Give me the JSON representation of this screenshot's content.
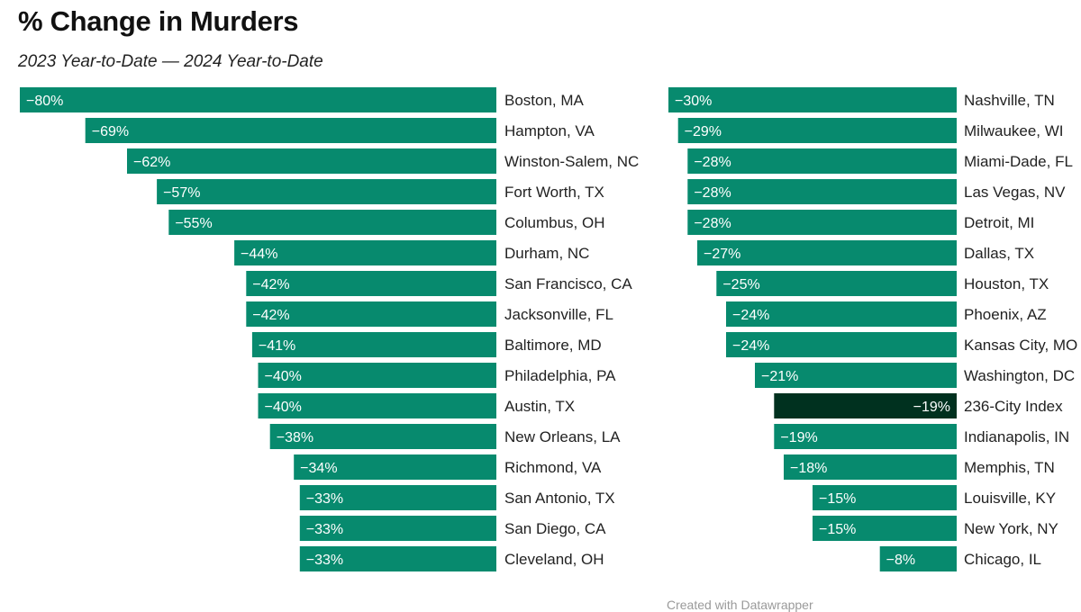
{
  "title": "% Change in Murders",
  "subtitle": "2023 Year-to-Date — 2024 Year-to-Date",
  "credit": "Created with Datawrapper",
  "colors": {
    "bar": "#078a6e",
    "highlight": "#00311f",
    "label_text": "#ffffff"
  },
  "chart_data": [
    {
      "type": "bar",
      "orientation": "horizontal",
      "panel": "left",
      "categories": [
        "Boston, MA",
        "Hampton, VA",
        "Winston-Salem, NC",
        "Fort Worth, TX",
        "Columbus, OH",
        "Durham, NC",
        "San Francisco, CA",
        "Jacksonville, FL",
        "Baltimore, MD",
        "Philadelphia, PA",
        "Austin, TX",
        "New Orleans, LA",
        "Richmond, VA",
        "San Antonio, TX",
        "San Diego, CA",
        "Cleveland, OH"
      ],
      "values": [
        -80,
        -69,
        -62,
        -57,
        -55,
        -44,
        -42,
        -42,
        -41,
        -40,
        -40,
        -38,
        -34,
        -33,
        -33,
        -33
      ],
      "labels": [
        "−80%",
        "−69%",
        "−62%",
        "−57%",
        "−55%",
        "−44%",
        "−42%",
        "−42%",
        "−41%",
        "−40%",
        "−40%",
        "−38%",
        "−34%",
        "−33%",
        "−33%",
        "−33%"
      ],
      "xlim": [
        -80,
        0
      ]
    },
    {
      "type": "bar",
      "orientation": "horizontal",
      "panel": "right",
      "categories": [
        "Nashville, TN",
        "Milwaukee, WI",
        "Miami-Dade, FL",
        "Las Vegas, NV",
        "Detroit, MI",
        "Dallas, TX",
        "Houston, TX",
        "Phoenix, AZ",
        "Kansas City, MO",
        "Washington, DC",
        "236-City Index",
        "Indianapolis, IN",
        "Memphis, TN",
        "Louisville, KY",
        "New York, NY",
        "Chicago, IL"
      ],
      "values": [
        -30,
        -29,
        -28,
        -28,
        -28,
        -27,
        -25,
        -24,
        -24,
        -21,
        -19,
        -19,
        -18,
        -15,
        -15,
        -8
      ],
      "labels": [
        "−30%",
        "−29%",
        "−28%",
        "−28%",
        "−28%",
        "−27%",
        "−25%",
        "−24%",
        "−24%",
        "−21%",
        "−19%",
        "−19%",
        "−18%",
        "−15%",
        "−15%",
        "−8%"
      ],
      "highlight": "236-City Index",
      "xlim": [
        -30,
        0
      ]
    }
  ]
}
